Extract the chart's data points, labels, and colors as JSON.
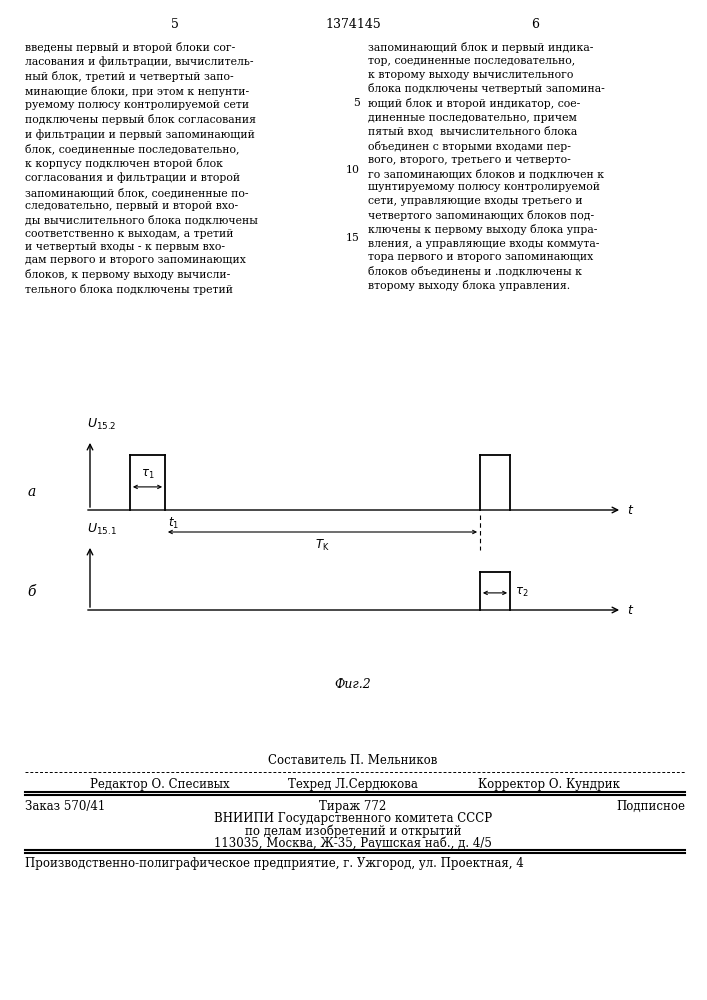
{
  "page_number_left": "5",
  "page_number_center": "1374145",
  "page_number_right": "6",
  "text_left": "введены первый и второй блоки сог-\nласования и фильтрации, вычислитель-\nный блок, третий и четвертый запо-\nминающие блоки, при этом к непунти-\nруемому полюсу контролируемой сети\nподключены первый блок согласования\nи фильтрации и первый запоминающий\nблок, соединенные последовательно,\nк корпусу подключен второй блок\nсогласования и фильтрации и второй\nзапоминающий блок, соединенные по-\nследовательно, первый и второй вхо-\nды вычислительного блока подключены\nсоответственно к выходам, а третий\nи четвертый входы - к первым вхо-\nдам первого и второго запоминающих\nблоков, к первому выходу вычисли-\nтельного блока подключены третий",
  "text_right": "запоминающий блок и первый индика-\nтор, соединенные последовательно,\nк второму выходу вычислительного\nблока подключены четвертый запомина-\nющий блок и второй индикатор, сое-\nдиненные последовательно, причем\nпятый вход  вычислительного блока\nобъединен с вторыми входами пер-\nвого, второго, третьего и четверто-\nго запоминающих блоков и подключен к\nшунтируемому полюсу контролируемой\nсети, управляющие входы третьего и\nчетвертого запоминающих блоков под-\nключены к первому выходу блока упра-\nвления, а управляющие входы коммута-\nтора первого и второго запоминающих\nблоков объединены и .подключены к\nвторому выходу блока управления.",
  "line_numbers_right": [
    "5",
    "10",
    "15"
  ],
  "footer_line1_col1": "Редактор О. Спесивых",
  "footer_line1_col2": "Техред Л.Сердюкова",
  "footer_line1_col3": "Корректор О. Кундрик",
  "footer_composer": "Составитель П. Мельников",
  "footer_order": "Заказ 570/41",
  "footer_circulation": "Тираж 772",
  "footer_subscription": "Подписное",
  "footer_org": "ВНИИПИ Государственного комитета СССР",
  "footer_dept": "по делам изобретений и открытий",
  "footer_address": "113035, Москва, Ж-35, Раушская наб., д. 4/5",
  "footer_printer": "Производственно-полиграфическое предприятие, г. Ужгород, ул. Проектная, 4",
  "bg_color": "#ffffff"
}
